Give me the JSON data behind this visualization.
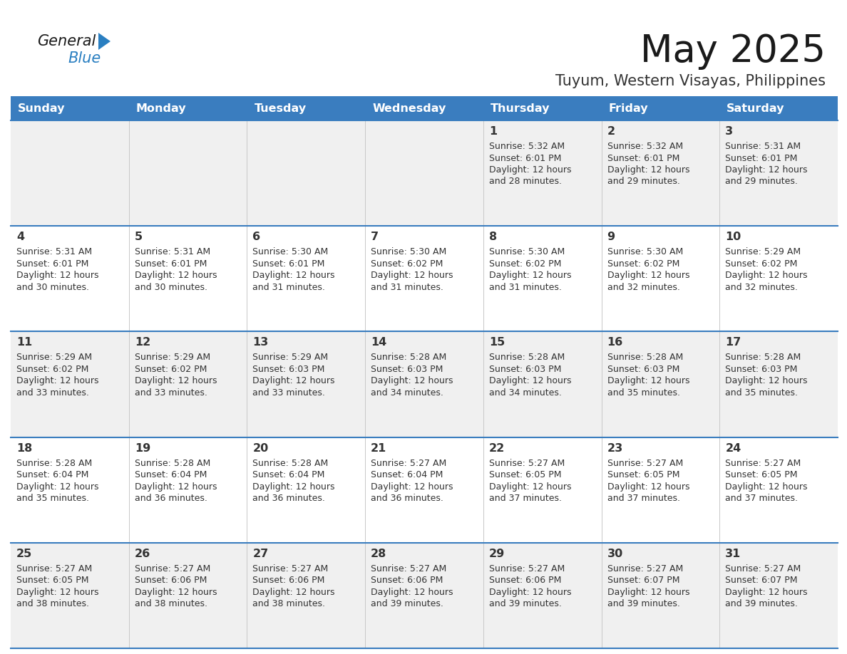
{
  "title": "May 2025",
  "subtitle": "Tuyum, Western Visayas, Philippines",
  "days_of_week": [
    "Sunday",
    "Monday",
    "Tuesday",
    "Wednesday",
    "Thursday",
    "Friday",
    "Saturday"
  ],
  "header_bg": "#3a7dbf",
  "header_text": "#ffffff",
  "row_bg": [
    "#f0f0f0",
    "#ffffff",
    "#f0f0f0",
    "#ffffff",
    "#f0f0f0"
  ],
  "row_line_color": "#3a7dbf",
  "text_color": "#333333",
  "title_color": "#1a1a1a",
  "subtitle_color": "#333333",
  "logo_color_general": "#1a1a1a",
  "logo_color_blue": "#2a7fc1",
  "logo_triangle_color": "#2a7fc1",
  "calendar_data": [
    [
      null,
      null,
      null,
      null,
      {
        "day": 1,
        "sunrise": "5:32 AM",
        "sunset": "6:01 PM",
        "daylight": "12 hours",
        "daylight2": "and 28 minutes."
      },
      {
        "day": 2,
        "sunrise": "5:32 AM",
        "sunset": "6:01 PM",
        "daylight": "12 hours",
        "daylight2": "and 29 minutes."
      },
      {
        "day": 3,
        "sunrise": "5:31 AM",
        "sunset": "6:01 PM",
        "daylight": "12 hours",
        "daylight2": "and 29 minutes."
      }
    ],
    [
      {
        "day": 4,
        "sunrise": "5:31 AM",
        "sunset": "6:01 PM",
        "daylight": "12 hours",
        "daylight2": "and 30 minutes."
      },
      {
        "day": 5,
        "sunrise": "5:31 AM",
        "sunset": "6:01 PM",
        "daylight": "12 hours",
        "daylight2": "and 30 minutes."
      },
      {
        "day": 6,
        "sunrise": "5:30 AM",
        "sunset": "6:01 PM",
        "daylight": "12 hours",
        "daylight2": "and 31 minutes."
      },
      {
        "day": 7,
        "sunrise": "5:30 AM",
        "sunset": "6:02 PM",
        "daylight": "12 hours",
        "daylight2": "and 31 minutes."
      },
      {
        "day": 8,
        "sunrise": "5:30 AM",
        "sunset": "6:02 PM",
        "daylight": "12 hours",
        "daylight2": "and 31 minutes."
      },
      {
        "day": 9,
        "sunrise": "5:30 AM",
        "sunset": "6:02 PM",
        "daylight": "12 hours",
        "daylight2": "and 32 minutes."
      },
      {
        "day": 10,
        "sunrise": "5:29 AM",
        "sunset": "6:02 PM",
        "daylight": "12 hours",
        "daylight2": "and 32 minutes."
      }
    ],
    [
      {
        "day": 11,
        "sunrise": "5:29 AM",
        "sunset": "6:02 PM",
        "daylight": "12 hours",
        "daylight2": "and 33 minutes."
      },
      {
        "day": 12,
        "sunrise": "5:29 AM",
        "sunset": "6:02 PM",
        "daylight": "12 hours",
        "daylight2": "and 33 minutes."
      },
      {
        "day": 13,
        "sunrise": "5:29 AM",
        "sunset": "6:03 PM",
        "daylight": "12 hours",
        "daylight2": "and 33 minutes."
      },
      {
        "day": 14,
        "sunrise": "5:28 AM",
        "sunset": "6:03 PM",
        "daylight": "12 hours",
        "daylight2": "and 34 minutes."
      },
      {
        "day": 15,
        "sunrise": "5:28 AM",
        "sunset": "6:03 PM",
        "daylight": "12 hours",
        "daylight2": "and 34 minutes."
      },
      {
        "day": 16,
        "sunrise": "5:28 AM",
        "sunset": "6:03 PM",
        "daylight": "12 hours",
        "daylight2": "and 35 minutes."
      },
      {
        "day": 17,
        "sunrise": "5:28 AM",
        "sunset": "6:03 PM",
        "daylight": "12 hours",
        "daylight2": "and 35 minutes."
      }
    ],
    [
      {
        "day": 18,
        "sunrise": "5:28 AM",
        "sunset": "6:04 PM",
        "daylight": "12 hours",
        "daylight2": "and 35 minutes."
      },
      {
        "day": 19,
        "sunrise": "5:28 AM",
        "sunset": "6:04 PM",
        "daylight": "12 hours",
        "daylight2": "and 36 minutes."
      },
      {
        "day": 20,
        "sunrise": "5:28 AM",
        "sunset": "6:04 PM",
        "daylight": "12 hours",
        "daylight2": "and 36 minutes."
      },
      {
        "day": 21,
        "sunrise": "5:27 AM",
        "sunset": "6:04 PM",
        "daylight": "12 hours",
        "daylight2": "and 36 minutes."
      },
      {
        "day": 22,
        "sunrise": "5:27 AM",
        "sunset": "6:05 PM",
        "daylight": "12 hours",
        "daylight2": "and 37 minutes."
      },
      {
        "day": 23,
        "sunrise": "5:27 AM",
        "sunset": "6:05 PM",
        "daylight": "12 hours",
        "daylight2": "and 37 minutes."
      },
      {
        "day": 24,
        "sunrise": "5:27 AM",
        "sunset": "6:05 PM",
        "daylight": "12 hours",
        "daylight2": "and 37 minutes."
      }
    ],
    [
      {
        "day": 25,
        "sunrise": "5:27 AM",
        "sunset": "6:05 PM",
        "daylight": "12 hours",
        "daylight2": "and 38 minutes."
      },
      {
        "day": 26,
        "sunrise": "5:27 AM",
        "sunset": "6:06 PM",
        "daylight": "12 hours",
        "daylight2": "and 38 minutes."
      },
      {
        "day": 27,
        "sunrise": "5:27 AM",
        "sunset": "6:06 PM",
        "daylight": "12 hours",
        "daylight2": "and 38 minutes."
      },
      {
        "day": 28,
        "sunrise": "5:27 AM",
        "sunset": "6:06 PM",
        "daylight": "12 hours",
        "daylight2": "and 39 minutes."
      },
      {
        "day": 29,
        "sunrise": "5:27 AM",
        "sunset": "6:06 PM",
        "daylight": "12 hours",
        "daylight2": "and 39 minutes."
      },
      {
        "day": 30,
        "sunrise": "5:27 AM",
        "sunset": "6:07 PM",
        "daylight": "12 hours",
        "daylight2": "and 39 minutes."
      },
      {
        "day": 31,
        "sunrise": "5:27 AM",
        "sunset": "6:07 PM",
        "daylight": "12 hours",
        "daylight2": "and 39 minutes."
      }
    ]
  ]
}
